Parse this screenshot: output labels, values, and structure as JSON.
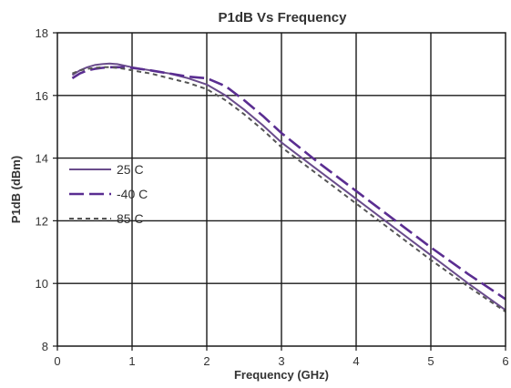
{
  "chart_data": {
    "type": "line",
    "title": "P1dB Vs Frequency",
    "xlabel": "Frequency (GHz)",
    "ylabel": "P1dB (dBm)",
    "xlim": [
      0,
      6
    ],
    "ylim": [
      8,
      18
    ],
    "x_ticks": [
      "0",
      "1",
      "2",
      "3",
      "4",
      "5",
      "6"
    ],
    "y_ticks": [
      "8",
      "10",
      "12",
      "14",
      "16",
      "18"
    ],
    "grid": true,
    "legend_position": "left",
    "series": [
      {
        "name": "25 C",
        "style": "solid",
        "color": "#6a4c8c",
        "x": [
          0.2,
          0.3,
          0.4,
          0.5,
          0.6,
          0.7,
          0.8,
          0.9,
          1.0,
          1.25,
          1.5,
          1.75,
          2.0,
          2.25,
          2.5,
          2.75,
          3.0,
          3.5,
          4.0,
          4.5,
          5.0,
          5.5,
          6.0
        ],
        "values": [
          16.65,
          16.8,
          16.9,
          16.97,
          17.0,
          17.02,
          17.0,
          16.95,
          16.9,
          16.8,
          16.7,
          16.55,
          16.35,
          16.0,
          15.55,
          15.05,
          14.5,
          13.6,
          12.7,
          11.8,
          10.9,
          10.0,
          9.15
        ]
      },
      {
        "name": "-40 C",
        "style": "dashed",
        "color": "#5a2d91",
        "x": [
          0.2,
          0.3,
          0.4,
          0.5,
          0.6,
          0.7,
          0.8,
          0.9,
          1.0,
          1.25,
          1.5,
          1.75,
          2.0,
          2.25,
          2.5,
          2.75,
          3.0,
          3.5,
          4.0,
          4.5,
          5.0,
          5.5,
          6.0
        ],
        "values": [
          16.55,
          16.7,
          16.8,
          16.85,
          16.88,
          16.9,
          16.9,
          16.9,
          16.88,
          16.8,
          16.7,
          16.6,
          16.55,
          16.3,
          15.85,
          15.35,
          14.8,
          13.85,
          12.95,
          12.05,
          11.15,
          10.3,
          9.5
        ]
      },
      {
        "name": "85 C",
        "style": "dotted",
        "color": "#555555",
        "x": [
          0.2,
          0.3,
          0.4,
          0.5,
          0.6,
          0.7,
          0.8,
          0.9,
          1.0,
          1.25,
          1.5,
          1.75,
          2.0,
          2.25,
          2.5,
          2.75,
          3.0,
          3.5,
          4.0,
          4.5,
          5.0,
          5.5,
          6.0
        ],
        "values": [
          16.7,
          16.8,
          16.85,
          16.88,
          16.9,
          16.9,
          16.88,
          16.85,
          16.8,
          16.7,
          16.55,
          16.4,
          16.2,
          15.85,
          15.4,
          14.9,
          14.35,
          13.45,
          12.55,
          11.65,
          10.75,
          9.9,
          9.1
        ]
      }
    ]
  }
}
